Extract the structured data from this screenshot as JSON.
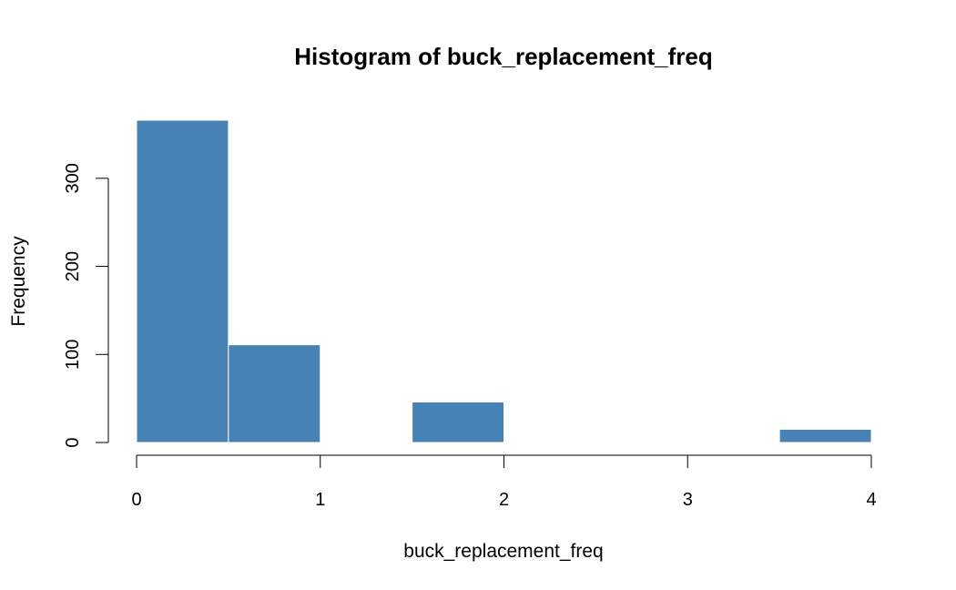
{
  "chart_data": {
    "type": "bar",
    "title": "Histogram of buck_replacement_freq",
    "xlabel": "buck_replacement_freq",
    "ylabel": "Frequency",
    "bins": [
      {
        "start": 0.0,
        "end": 0.5,
        "count": 366
      },
      {
        "start": 0.5,
        "end": 1.0,
        "count": 111
      },
      {
        "start": 1.0,
        "end": 1.5,
        "count": 0
      },
      {
        "start": 1.5,
        "end": 2.0,
        "count": 46
      },
      {
        "start": 2.0,
        "end": 2.5,
        "count": 0
      },
      {
        "start": 2.5,
        "end": 3.0,
        "count": 0
      },
      {
        "start": 3.0,
        "end": 3.5,
        "count": 0
      },
      {
        "start": 3.5,
        "end": 4.0,
        "count": 15
      }
    ],
    "xlim": [
      0,
      4
    ],
    "ylim": [
      0,
      366
    ],
    "x_ticks": [
      0,
      1,
      2,
      3,
      4
    ],
    "y_ticks": [
      0,
      100,
      200,
      300
    ],
    "bar_color": "#4682B4",
    "grid": false
  }
}
